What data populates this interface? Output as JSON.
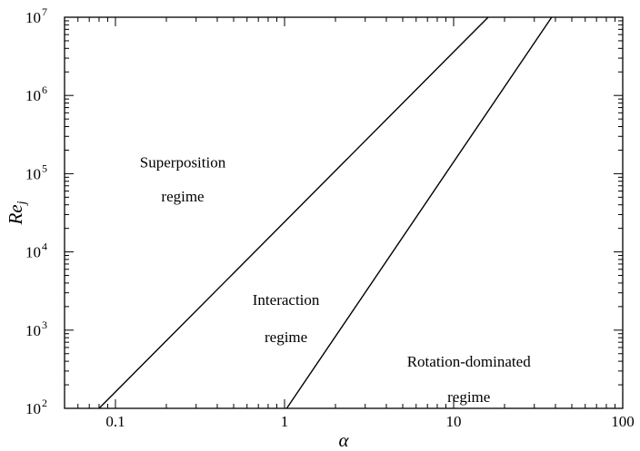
{
  "chart_data": {
    "type": "line",
    "xscale": "log",
    "yscale": "log",
    "xlim": [
      0.05,
      100
    ],
    "ylim": [
      100,
      10000000
    ],
    "xlabel": "α",
    "ylabel": {
      "base": "Re",
      "sub": "j"
    },
    "x_ticks": [
      {
        "value": 0.1,
        "label": "0.1"
      },
      {
        "value": 1,
        "label": "1"
      },
      {
        "value": 10,
        "label": "10"
      },
      {
        "value": 100,
        "label": "100"
      }
    ],
    "y_ticks": [
      {
        "value": 100,
        "base": "10",
        "exp": "2"
      },
      {
        "value": 1000,
        "base": "10",
        "exp": "3"
      },
      {
        "value": 10000,
        "base": "10",
        "exp": "4"
      },
      {
        "value": 100000,
        "base": "10",
        "exp": "5"
      },
      {
        "value": 1000000,
        "base": "10",
        "exp": "6"
      },
      {
        "value": 10000000,
        "base": "10",
        "exp": "7"
      }
    ],
    "series": [
      {
        "x": [
          0.08,
          16
        ],
        "y": [
          100,
          10000000
        ]
      },
      {
        "x": [
          1.03,
          38
        ],
        "y": [
          100,
          10000000
        ]
      }
    ],
    "annotations": [
      {
        "lines": [
          "Superposition",
          "regime"
        ],
        "x": 0.25,
        "y": [
          120000,
          44000
        ]
      },
      {
        "lines": [
          "Interaction",
          "regime"
        ],
        "x": 1.02,
        "y": [
          2100,
          700
        ]
      },
      {
        "lines": [
          "Rotation-dominated",
          "regime"
        ],
        "x": 12.3,
        "y": [
          340,
          120
        ]
      }
    ],
    "grid": false,
    "line_color": "#000000"
  }
}
